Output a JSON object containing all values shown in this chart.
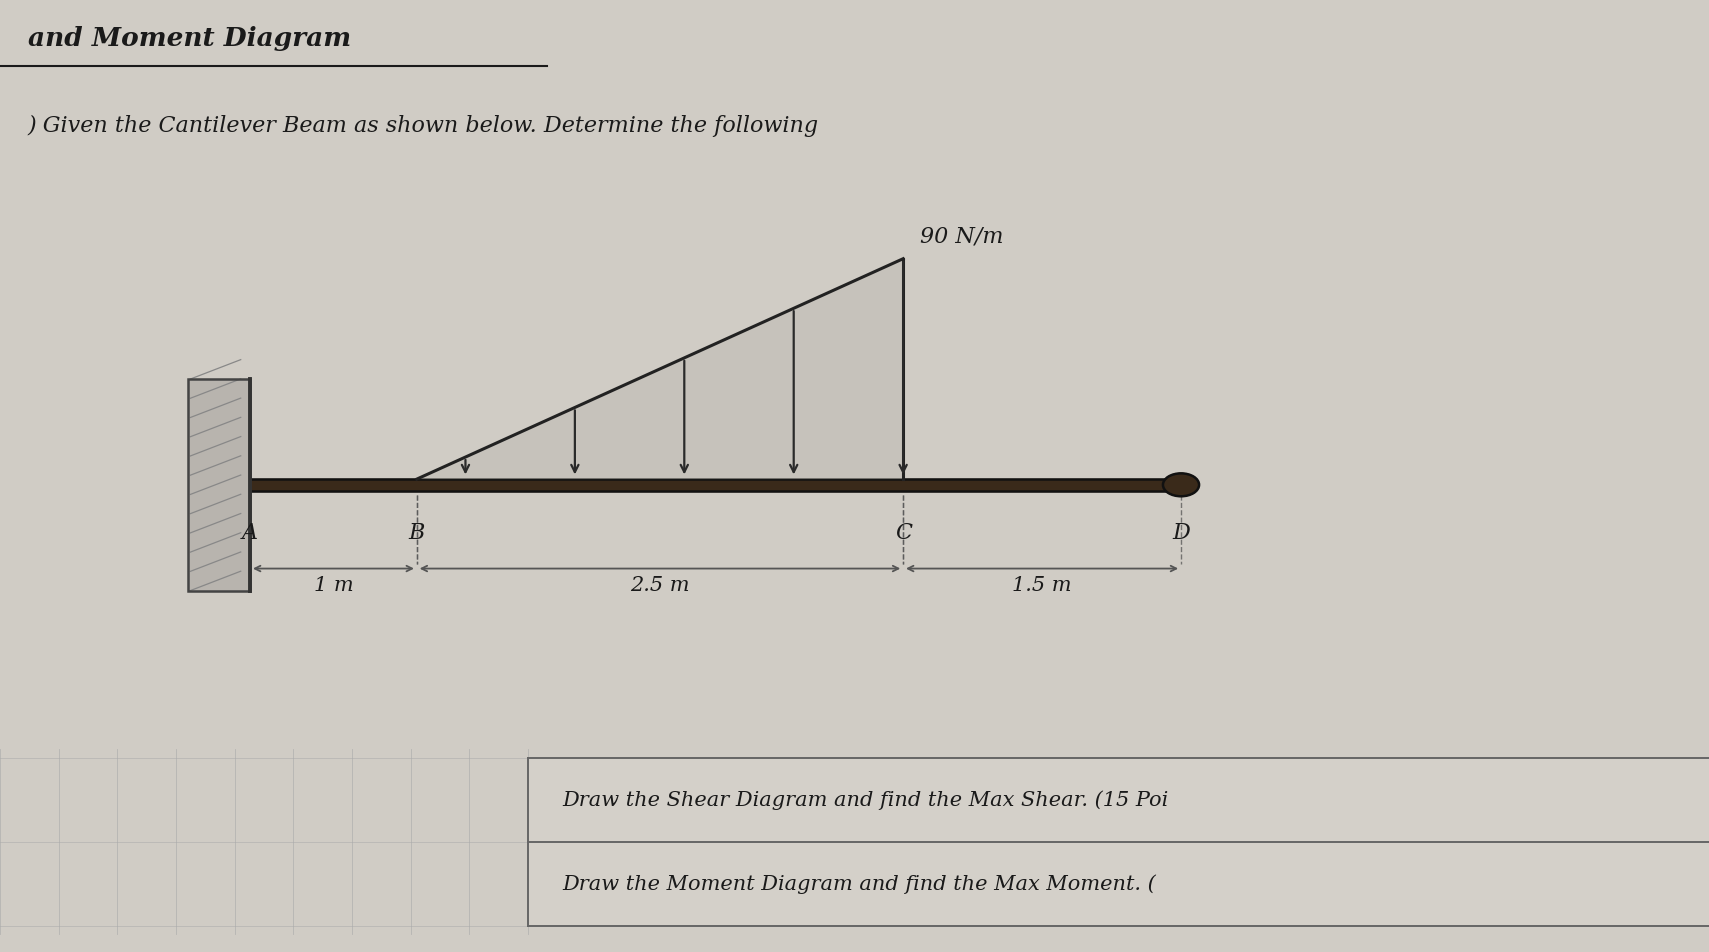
{
  "title": "and Moment Diagram",
  "subtitle": ") Given the Cantilever Beam as shown below. Determine the following",
  "load_label": "90 N/m",
  "point_labels": [
    "A",
    "B",
    "C",
    "D"
  ],
  "distances": [
    "1 m",
    "2.5 m",
    "1.5 m"
  ],
  "task1": "Draw the Shear Diagram and find the Max Shear. (15 Poi",
  "task2": "Draw the Moment Diagram and find the Max Moment. (",
  "bg_color": "#d0ccc5",
  "beam_color": "#3a2a1a",
  "text_color": "#1a1a1a",
  "arrow_color": "#2a2a2a",
  "line_color": "#555555",
  "points": {
    "A": 0.0,
    "B": 1.2,
    "C": 4.7,
    "D": 6.7
  }
}
